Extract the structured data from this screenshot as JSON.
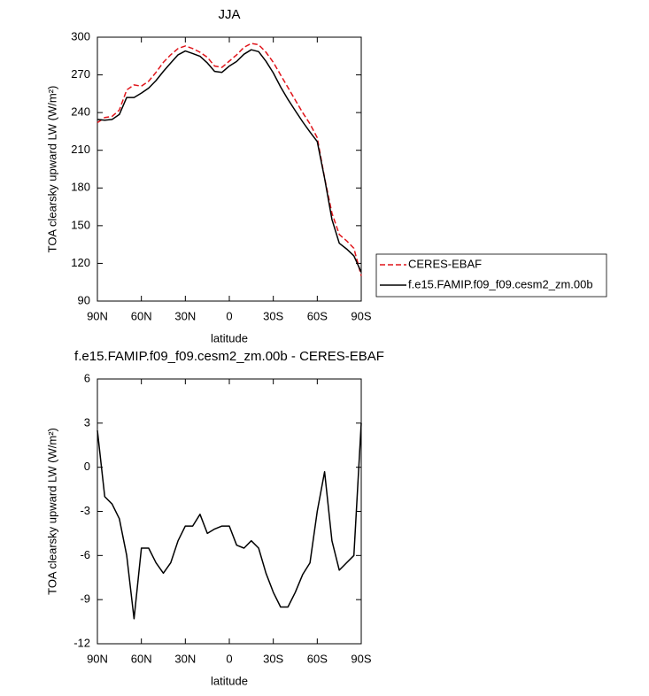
{
  "chart_data": [
    {
      "type": "line",
      "title": "JJA",
      "xlabel": "latitude",
      "ylabel": "TOA clearsky upward LW (W/m²)",
      "x": [
        90,
        85,
        80,
        75,
        70,
        65,
        60,
        55,
        50,
        45,
        40,
        35,
        30,
        25,
        20,
        15,
        10,
        5,
        0,
        -5,
        -10,
        -15,
        -20,
        -25,
        -30,
        -35,
        -40,
        -45,
        -50,
        -55,
        -60,
        -65,
        -70,
        -75,
        -80,
        -85,
        -90
      ],
      "xlim": [
        90,
        -90
      ],
      "xticks": [
        {
          "value": 90,
          "label": "90N"
        },
        {
          "value": 60,
          "label": "60N"
        },
        {
          "value": 30,
          "label": "30N"
        },
        0,
        {
          "value": -30,
          "label": "30S"
        },
        {
          "value": -60,
          "label": "60S"
        },
        {
          "value": -90,
          "label": "90S"
        }
      ],
      "ylim": [
        90,
        300
      ],
      "yticks": [
        90,
        120,
        150,
        180,
        210,
        240,
        270,
        300
      ],
      "legend": "right",
      "series": [
        {
          "name": "CERES-EBAF",
          "color": "#e0151b",
          "linestyle": "dashed",
          "values": [
            232,
            236,
            237,
            242,
            258,
            262,
            261,
            265,
            272,
            280,
            286,
            291,
            293,
            291,
            288,
            284,
            277,
            276,
            281,
            286,
            292,
            295,
            294,
            288,
            280,
            270,
            260,
            250,
            240,
            231,
            220,
            188,
            160,
            143,
            138,
            132,
            110
          ]
        },
        {
          "name": "f.e15.FAMIP.f09_f09.cesm2_zm.00b",
          "color": "#000000",
          "linestyle": "solid",
          "values": [
            234.5,
            234,
            234.5,
            238.5,
            252,
            252,
            255.5,
            259.5,
            265.5,
            272.8,
            279.5,
            286,
            289,
            287,
            284.8,
            279.5,
            272.8,
            272,
            277,
            280.7,
            286.5,
            290,
            288.5,
            280.8,
            271.5,
            260.5,
            250.5,
            241.5,
            232.7,
            224.5,
            217,
            187.7,
            155,
            136,
            131.5,
            126,
            113
          ]
        }
      ]
    },
    {
      "type": "line",
      "title": "f.e15.FAMIP.f09_f09.cesm2_zm.00b - CERES-EBAF",
      "xlabel": "latitude",
      "ylabel": "TOA clearsky upward LW (W/m²)",
      "x": [
        90,
        85,
        80,
        75,
        70,
        65,
        60,
        55,
        50,
        45,
        40,
        35,
        30,
        25,
        20,
        15,
        10,
        5,
        0,
        -5,
        -10,
        -15,
        -20,
        -25,
        -30,
        -35,
        -40,
        -45,
        -50,
        -55,
        -60,
        -65,
        -70,
        -75,
        -80,
        -85,
        -90
      ],
      "xlim": [
        90,
        -90
      ],
      "xticks": [
        {
          "value": 90,
          "label": "90N"
        },
        {
          "value": 60,
          "label": "60N"
        },
        {
          "value": 30,
          "label": "30N"
        },
        0,
        {
          "value": -30,
          "label": "30S"
        },
        {
          "value": -60,
          "label": "60S"
        },
        {
          "value": -90,
          "label": "90S"
        }
      ],
      "ylim": [
        -12,
        6
      ],
      "yticks": [
        -12,
        -9,
        -6,
        -3,
        0,
        3,
        6
      ],
      "color": "#000000",
      "values": [
        2.5,
        -2,
        -2.5,
        -3.5,
        -6,
        -10.3,
        -5.5,
        -5.5,
        -6.5,
        -7.2,
        -6.5,
        -5,
        -4,
        -4,
        -3.2,
        -4.5,
        -4.2,
        -4,
        -4,
        -5.3,
        -5.5,
        -5,
        -5.5,
        -7.2,
        -8.5,
        -9.5,
        -9.5,
        -8.5,
        -7.3,
        -6.5,
        -3,
        -0.3,
        -5,
        -7,
        -6.5,
        -6,
        3
      ]
    }
  ]
}
